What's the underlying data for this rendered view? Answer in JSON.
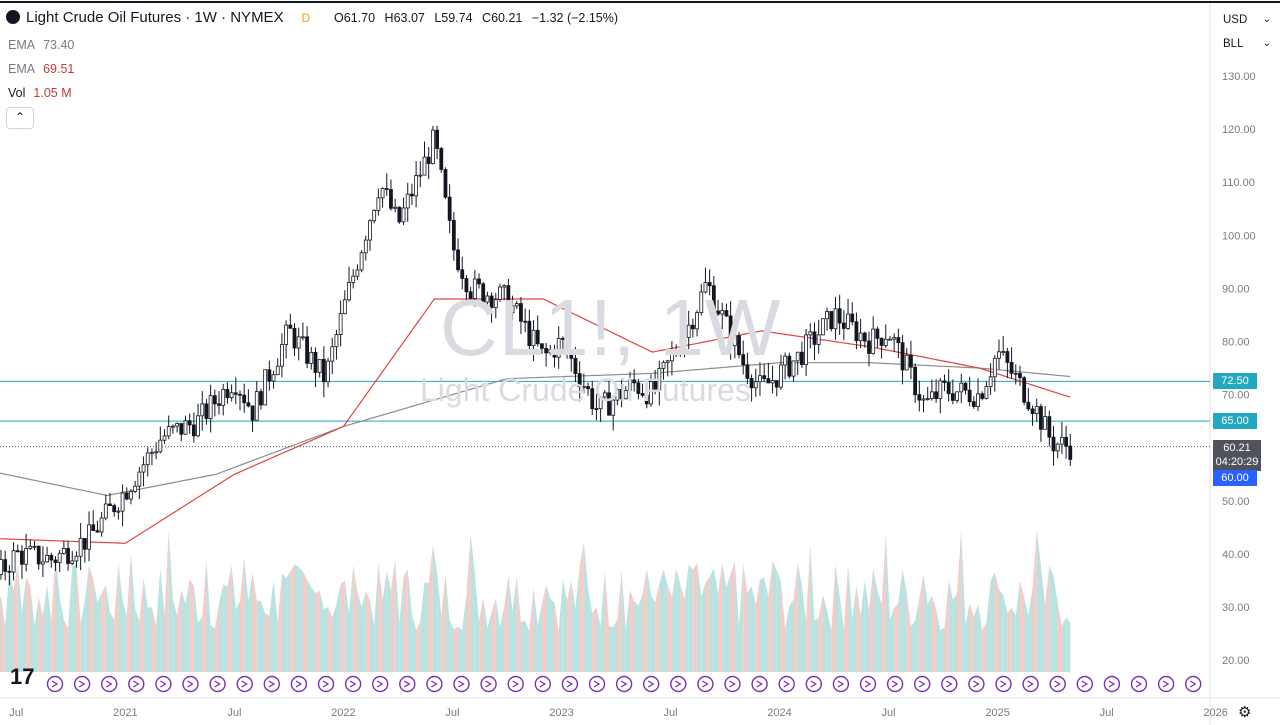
{
  "header": {
    "title": "Light Crude Oil Futures · 1W · NYMEX",
    "badge": "D",
    "ohlc": {
      "open_label": "O",
      "open": "61.70",
      "high_label": "H",
      "high": "63.07",
      "low_label": "L",
      "low": "59.74",
      "close_label": "C",
      "close": "60.21",
      "change": "−1.32 (−2.15%)"
    }
  },
  "indicators": [
    {
      "name": "EMA",
      "value": "73.40"
    },
    {
      "name": "EMA",
      "value": "69.51"
    },
    {
      "name": "Vol",
      "value": "1.05 M"
    }
  ],
  "collapse_button": "⌃",
  "right_controls": {
    "currency": "USD",
    "mode": "BLL"
  },
  "watermark": {
    "symbol": "CL1!, 1W",
    "name": "Light Crude Oil Futures"
  },
  "price_labels": {
    "level_1": "72.50",
    "level_2": "65.00",
    "last": "60.21",
    "countdown": "04:20:29",
    "level_3": "60.00"
  },
  "colors": {
    "up": "#26a69a",
    "down": "#ef5350",
    "candle": "#131722",
    "ema_slow": "#8c8c8c",
    "ema_fast": "#e04444",
    "hline": "#22a8c0",
    "level_3_bg": "#2962ff",
    "last_bg": "#50535e",
    "vol_up": "#b2dfdb",
    "vol_down": "#f7c5c3",
    "event_marker": "#7a2fb5"
  },
  "chart_data": {
    "type": "candlestick",
    "timeframe": "1W",
    "y_axis": {
      "ticks": [
        "130.00",
        "120.00",
        "110.00",
        "100.00",
        "90.00",
        "80.00",
        "70.00",
        "60.00",
        "50.00",
        "40.00",
        "30.00",
        "20.00"
      ],
      "ylim": [
        16,
        132
      ]
    },
    "x_axis": {
      "ticks": [
        "Jul",
        "2021",
        "Jul",
        "2022",
        "Jul",
        "2023",
        "Jul",
        "2024",
        "Jul",
        "2025",
        "Jul",
        "2026"
      ],
      "xlim": [
        "2020-05",
        "2026-03"
      ]
    },
    "horizontal_levels": [
      72.5,
      65.0,
      60.21
    ],
    "series_close_approx": [
      {
        "date": "2020-05",
        "close": 32
      },
      {
        "date": "2020-07",
        "close": 40
      },
      {
        "date": "2020-09",
        "close": 39
      },
      {
        "date": "2020-11",
        "close": 43
      },
      {
        "date": "2021-01",
        "close": 52
      },
      {
        "date": "2021-03",
        "close": 62
      },
      {
        "date": "2021-05",
        "close": 65
      },
      {
        "date": "2021-07",
        "close": 73
      },
      {
        "date": "2021-08",
        "close": 67
      },
      {
        "date": "2021-10",
        "close": 82
      },
      {
        "date": "2021-12",
        "close": 73
      },
      {
        "date": "2022-01",
        "close": 86
      },
      {
        "date": "2022-03",
        "close": 110
      },
      {
        "date": "2022-04",
        "close": 102
      },
      {
        "date": "2022-06",
        "close": 118
      },
      {
        "date": "2022-07",
        "close": 98
      },
      {
        "date": "2022-08",
        "close": 90
      },
      {
        "date": "2022-10",
        "close": 88
      },
      {
        "date": "2022-12",
        "close": 77
      },
      {
        "date": "2023-01",
        "close": 80
      },
      {
        "date": "2023-03",
        "close": 67
      },
      {
        "date": "2023-05",
        "close": 72
      },
      {
        "date": "2023-06",
        "close": 70
      },
      {
        "date": "2023-08",
        "close": 83
      },
      {
        "date": "2023-09",
        "close": 91
      },
      {
        "date": "2023-11",
        "close": 76
      },
      {
        "date": "2023-12",
        "close": 71
      },
      {
        "date": "2024-02",
        "close": 77
      },
      {
        "date": "2024-04",
        "close": 85
      },
      {
        "date": "2024-06",
        "close": 80
      },
      {
        "date": "2024-07",
        "close": 82
      },
      {
        "date": "2024-09",
        "close": 68
      },
      {
        "date": "2024-10",
        "close": 71
      },
      {
        "date": "2024-12",
        "close": 70
      },
      {
        "date": "2025-01",
        "close": 78
      },
      {
        "date": "2025-03",
        "close": 68
      },
      {
        "date": "2025-04",
        "close": 61
      },
      {
        "date": "2025-05",
        "close": 60.21
      }
    ],
    "ema_fast_approx": [
      {
        "date": "2020-05",
        "value": 43
      },
      {
        "date": "2021-01",
        "value": 42
      },
      {
        "date": "2021-07",
        "value": 55
      },
      {
        "date": "2022-01",
        "value": 64
      },
      {
        "date": "2022-06",
        "value": 88
      },
      {
        "date": "2022-12",
        "value": 88
      },
      {
        "date": "2023-06",
        "value": 78
      },
      {
        "date": "2023-12",
        "value": 82
      },
      {
        "date": "2024-06",
        "value": 79
      },
      {
        "date": "2024-12",
        "value": 75
      },
      {
        "date": "2025-05",
        "value": 69.51
      }
    ],
    "ema_slow_approx": [
      {
        "date": "2020-05",
        "value": 56
      },
      {
        "date": "2020-12",
        "value": 51
      },
      {
        "date": "2021-06",
        "value": 55
      },
      {
        "date": "2022-01",
        "value": 64
      },
      {
        "date": "2022-10",
        "value": 73
      },
      {
        "date": "2023-06",
        "value": 74
      },
      {
        "date": "2024-01",
        "value": 76
      },
      {
        "date": "2024-06",
        "value": 76
      },
      {
        "date": "2024-12",
        "value": 75
      },
      {
        "date": "2025-05",
        "value": 73.4
      }
    ],
    "volume_note": "volume area shown at bottom, last 1.05 M"
  }
}
